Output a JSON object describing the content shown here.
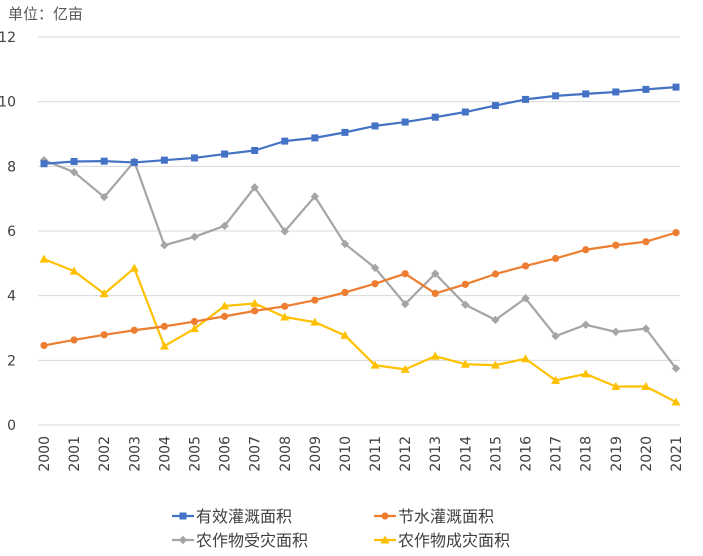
{
  "chart_data": {
    "type": "line",
    "unit_label": "单位：亿亩",
    "categories": [
      "2000",
      "2001",
      "2002",
      "2003",
      "2004",
      "2005",
      "2006",
      "2007",
      "2008",
      "2009",
      "2010",
      "2011",
      "2012",
      "2013",
      "2014",
      "2015",
      "2016",
      "2017",
      "2018",
      "2019",
      "2020",
      "2021"
    ],
    "ylim": [
      0,
      12
    ],
    "yticks": [
      0,
      2,
      4,
      6,
      8,
      10,
      12
    ],
    "grid": true,
    "legend_position": "bottom",
    "series": [
      {
        "name": "有效灌溉面积",
        "color": "#4472c4",
        "marker": "square",
        "values": [
          8.08,
          8.15,
          8.16,
          8.12,
          8.19,
          8.26,
          8.38,
          8.49,
          8.78,
          8.88,
          9.05,
          9.25,
          9.37,
          9.52,
          9.68,
          9.88,
          10.07,
          10.18,
          10.24,
          10.3,
          10.38,
          10.45
        ]
      },
      {
        "name": "节水灌溉面积",
        "color": "#ed7d31",
        "marker": "circle",
        "values": [
          2.46,
          2.63,
          2.79,
          2.93,
          3.05,
          3.2,
          3.36,
          3.53,
          3.67,
          3.86,
          4.1,
          4.37,
          4.68,
          4.07,
          4.35,
          4.67,
          4.92,
          5.15,
          5.42,
          5.56,
          5.67,
          5.95
        ]
      },
      {
        "name": "农作物受灾面积",
        "color": "#a5a5a5",
        "marker": "diamond",
        "values": [
          8.19,
          7.82,
          7.05,
          8.15,
          5.56,
          5.82,
          6.16,
          7.35,
          5.99,
          7.07,
          5.6,
          4.86,
          3.74,
          4.68,
          3.72,
          3.25,
          3.92,
          2.75,
          3.1,
          2.88,
          2.98,
          1.75
        ]
      },
      {
        "name": "农作物成灾面积",
        "color": "#ffc000",
        "marker": "triangle",
        "values": [
          5.13,
          4.76,
          4.06,
          4.85,
          2.44,
          2.98,
          3.68,
          3.76,
          3.34,
          3.18,
          2.77,
          1.85,
          1.72,
          2.13,
          1.88,
          1.85,
          2.05,
          1.38,
          1.58,
          1.19,
          1.19,
          0.71
        ]
      }
    ]
  }
}
